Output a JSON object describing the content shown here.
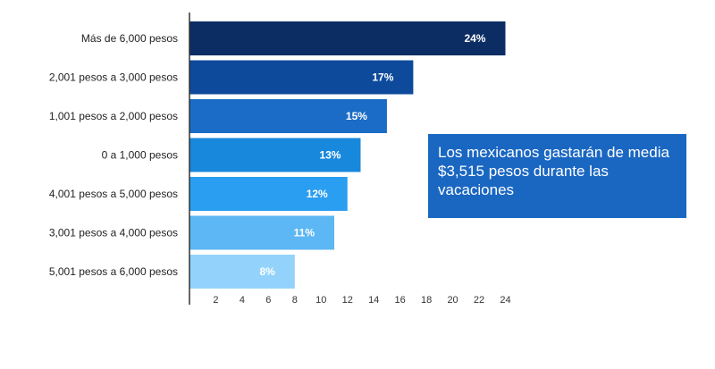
{
  "chart_data": {
    "type": "bar",
    "orientation": "horizontal",
    "categories": [
      "Más de 6,000 pesos",
      "2,001 pesos a 3,000 pesos",
      "1,001 pesos a 2,000 pesos",
      "0 a 1,000 pesos",
      "4,001 pesos a 5,000 pesos",
      "3,001 pesos a 4,000 pesos",
      "5,001 pesos a 6,000 pesos"
    ],
    "values": [
      24,
      17,
      15,
      13,
      12,
      11,
      8
    ],
    "value_labels": [
      "24%",
      "17%",
      "15%",
      "13%",
      "12%",
      "11%",
      "8%"
    ],
    "bar_colors": [
      "#0b2d63",
      "#0d4a9c",
      "#1a6cc6",
      "#1888dd",
      "#2a9ef0",
      "#5cb7f4",
      "#93d3fb"
    ],
    "xlim": [
      0,
      25.8
    ],
    "xticks": [
      2,
      4,
      6,
      8,
      10,
      12,
      14,
      16,
      18,
      20,
      22,
      24
    ],
    "grid": false
  },
  "callout": {
    "text": "Los mexicanos gastarán de media $3,515 pesos durante las vacaciones",
    "background": "#1a67c2"
  }
}
